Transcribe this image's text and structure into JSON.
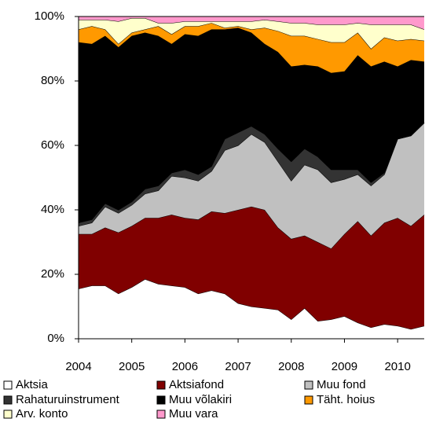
{
  "chart_data": {
    "type": "stacked_area",
    "x": [
      2004,
      2004.25,
      2004.5,
      2004.75,
      2005,
      2005.25,
      2005.5,
      2005.75,
      2006,
      2006.25,
      2006.5,
      2006.75,
      2007,
      2007.25,
      2007.5,
      2007.75,
      2008,
      2008.25,
      2008.5,
      2008.75,
      2009,
      2009.25,
      2009.5,
      2009.75,
      2010,
      2010.25,
      2010.5
    ],
    "xlim": [
      2004,
      2010.5
    ],
    "xticks": [
      2004,
      2005,
      2006,
      2007,
      2008,
      2009,
      2010
    ],
    "ylim": [
      0,
      100
    ],
    "yticks": [
      {
        "value": 0,
        "label": "0%"
      },
      {
        "value": 20,
        "label": "20%"
      },
      {
        "value": 40,
        "label": "40%"
      },
      {
        "value": 60,
        "label": "60%"
      },
      {
        "value": 80,
        "label": "80%"
      },
      {
        "value": 100,
        "label": "100%"
      }
    ],
    "series": [
      {
        "name": "Aktsia",
        "color": "#ffffff",
        "values": [
          15.5,
          16.5,
          16.5,
          14,
          16,
          18.5,
          17,
          16.5,
          16,
          14,
          15,
          14,
          11,
          10,
          9.5,
          9,
          6,
          9.5,
          5.5,
          6,
          7,
          5,
          3.5,
          4.5,
          4,
          3,
          4
        ]
      },
      {
        "name": "Aktsiafond",
        "color": "#800000",
        "values": [
          17,
          16,
          18,
          19,
          19,
          19,
          20.5,
          22,
          21.5,
          23,
          24.5,
          25,
          29,
          31,
          30.5,
          25.5,
          25,
          22.5,
          24.5,
          22,
          25.5,
          31.5,
          28.5,
          31.5,
          33.5,
          32,
          34.5
        ]
      },
      {
        "name": "Muu fond",
        "color": "#c0c0c0",
        "values": [
          2.5,
          3.5,
          6.5,
          6,
          6.5,
          7.5,
          8.5,
          12,
          12.5,
          12,
          12.5,
          19.5,
          20,
          22.5,
          21,
          20.5,
          18,
          22,
          22.5,
          20.5,
          17,
          14.5,
          15.5,
          15,
          24.5,
          28,
          28.5
        ]
      },
      {
        "name": "Rahaturuinstrument",
        "color": "#333333",
        "values": [
          1,
          1,
          1,
          1,
          1,
          1.5,
          1.5,
          1,
          2.5,
          2,
          1.5,
          3.5,
          4,
          2.5,
          2.5,
          4,
          6,
          5,
          4,
          4,
          3,
          1.5,
          1,
          0.5,
          0,
          0,
          0
        ]
      },
      {
        "name": "Muu võlakiri",
        "color": "#000000",
        "values": [
          56,
          54.5,
          52,
          50.5,
          51.5,
          48.5,
          46.5,
          40,
          42,
          43,
          42.5,
          34,
          32.5,
          29,
          28,
          30,
          29.5,
          26,
          28,
          30,
          30.5,
          35.5,
          36,
          34.5,
          22.5,
          23.5,
          19
        ]
      },
      {
        "name": "Täht. hoius",
        "color": "#ff9900",
        "values": [
          4,
          5.5,
          2,
          1,
          1,
          1,
          3,
          3,
          2.5,
          3,
          2,
          0.5,
          0.5,
          1,
          5,
          6.5,
          9.5,
          9,
          8.5,
          9.5,
          9,
          7,
          5.5,
          7.5,
          8,
          6.5,
          6.5
        ]
      },
      {
        "name": "Arv. konto",
        "color": "#ffffcc",
        "values": [
          3,
          2,
          3,
          7,
          4.5,
          3.5,
          1,
          3.5,
          1.5,
          1.5,
          0.5,
          2,
          1.5,
          2.5,
          2.5,
          3,
          4,
          4,
          4.5,
          5.5,
          5.5,
          3,
          7.5,
          4,
          5,
          4.5,
          3.5
        ]
      },
      {
        "name": "Muu vara",
        "color": "#ff99cc",
        "values": [
          1,
          1,
          1,
          1.5,
          0.5,
          0.5,
          2,
          2,
          1.5,
          1.5,
          1.5,
          1.5,
          1.5,
          1.5,
          1,
          1.5,
          2,
          2,
          2.5,
          2.5,
          2.5,
          2,
          2.5,
          2.5,
          2.5,
          2.5,
          4
        ]
      }
    ]
  }
}
